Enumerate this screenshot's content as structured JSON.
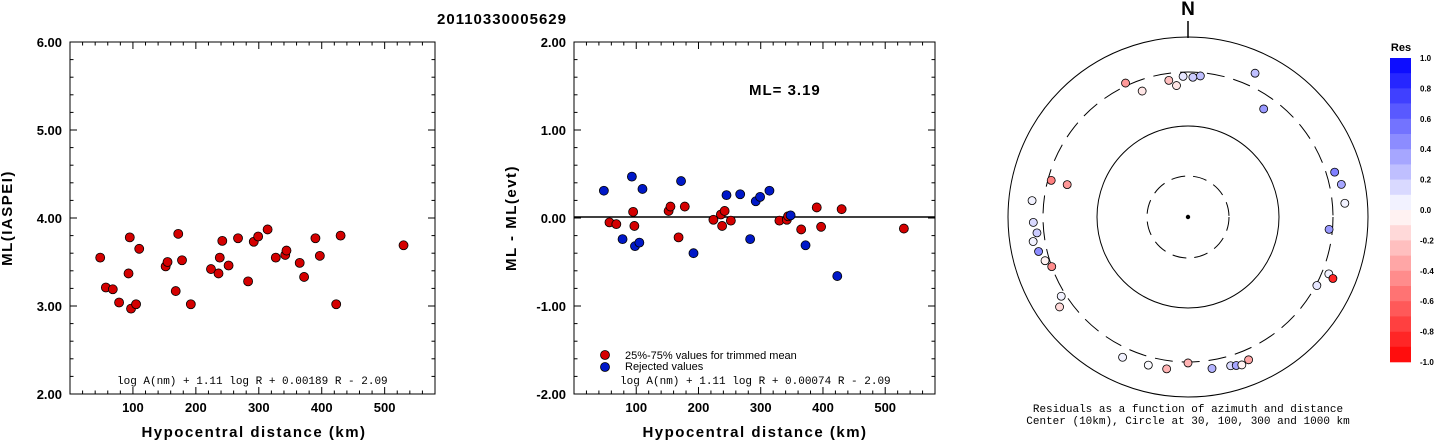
{
  "figure_title": "20110330005629",
  "chart_data": [
    {
      "type": "scatter",
      "xlabel": "Hypocentral distance (km)",
      "ylabel": "ML(IASPEI)",
      "xlim": [
        0,
        580
      ],
      "ylim": [
        2.0,
        6.0
      ],
      "xticks": [
        "100",
        "200",
        "300",
        "400",
        "500"
      ],
      "yticks": [
        "2.00",
        "3.00",
        "4.00",
        "5.00",
        "6.00"
      ],
      "formula": "log A(nm) + 1.11 log R + 0.00189 R - 2.09",
      "point_color": "#d40000",
      "points": [
        [
          48,
          3.55
        ],
        [
          57,
          3.21
        ],
        [
          68,
          3.19
        ],
        [
          78,
          3.04
        ],
        [
          93,
          3.37
        ],
        [
          95,
          3.78
        ],
        [
          97,
          2.97
        ],
        [
          105,
          3.02
        ],
        [
          110,
          3.65
        ],
        [
          152,
          3.45
        ],
        [
          155,
          3.5
        ],
        [
          168,
          3.17
        ],
        [
          172,
          3.82
        ],
        [
          178,
          3.52
        ],
        [
          192,
          3.02
        ],
        [
          224,
          3.42
        ],
        [
          236,
          3.37
        ],
        [
          238,
          3.55
        ],
        [
          242,
          3.74
        ],
        [
          252,
          3.46
        ],
        [
          267,
          3.77
        ],
        [
          283,
          3.28
        ],
        [
          292,
          3.73
        ],
        [
          299,
          3.79
        ],
        [
          314,
          3.87
        ],
        [
          327,
          3.55
        ],
        [
          342,
          3.58
        ],
        [
          344,
          3.63
        ],
        [
          365,
          3.49
        ],
        [
          372,
          3.33
        ],
        [
          390,
          3.77
        ],
        [
          397,
          3.57
        ],
        [
          423,
          3.02
        ],
        [
          430,
          3.8
        ],
        [
          530,
          3.69
        ]
      ]
    },
    {
      "type": "scatter",
      "xlabel": "Hypocentral distance (km)",
      "ylabel": "ML - ML(evt)",
      "xlim": [
        0,
        580
      ],
      "ylim": [
        -2.0,
        2.0
      ],
      "xticks": [
        "100",
        "200",
        "300",
        "400",
        "500"
      ],
      "yticks": [
        "-2.00",
        "-1.00",
        "0.00",
        "1.00",
        "2.00"
      ],
      "annotation": "ML= 3.19",
      "formula": "log A(nm) + 1.11 log R + 0.00074 R - 2.09",
      "legend": [
        "25%-75% values for trimmed mean",
        "Rejected values"
      ],
      "series": [
        {
          "name": "25%-75% values for trimmed mean",
          "color": "#d40000",
          "points": [
            [
              57,
              -0.05
            ],
            [
              68,
              -0.07
            ],
            [
              95,
              0.07
            ],
            [
              97,
              -0.09
            ],
            [
              152,
              0.08
            ],
            [
              155,
              0.13
            ],
            [
              168,
              -0.22
            ],
            [
              178,
              0.13
            ],
            [
              224,
              -0.02
            ],
            [
              236,
              0.04
            ],
            [
              238,
              -0.09
            ],
            [
              242,
              0.08
            ],
            [
              252,
              -0.03
            ],
            [
              330,
              -0.03
            ],
            [
              342,
              -0.02
            ],
            [
              344,
              0.02
            ],
            [
              365,
              -0.13
            ],
            [
              390,
              0.12
            ],
            [
              397,
              -0.1
            ],
            [
              430,
              0.1
            ],
            [
              530,
              -0.12
            ]
          ]
        },
        {
          "name": "Rejected values",
          "color": "#0018c8",
          "points": [
            [
              48,
              0.31
            ],
            [
              78,
              -0.24
            ],
            [
              93,
              0.47
            ],
            [
              98,
              -0.32
            ],
            [
              105,
              -0.28
            ],
            [
              110,
              0.33
            ],
            [
              172,
              0.42
            ],
            [
              192,
              -0.4
            ],
            [
              245,
              0.26
            ],
            [
              267,
              0.27
            ],
            [
              283,
              -0.24
            ],
            [
              292,
              0.19
            ],
            [
              299,
              0.24
            ],
            [
              314,
              0.31
            ],
            [
              348,
              0.03
            ],
            [
              372,
              -0.31
            ],
            [
              423,
              -0.66
            ]
          ]
        }
      ]
    },
    {
      "type": "polar-scatter",
      "north_label": "N",
      "caption_line1": "Residuals as a function of azimuth and distance",
      "caption_line2": "Center (10km), Circle at 30, 100, 300 and 1000 km",
      "colorbar_title": "Res",
      "colorbar_ticks": [
        "1.0",
        "0.8",
        "0.6",
        "0.4",
        "0.2",
        "0.0",
        "-0.2",
        "-0.4",
        "-0.6",
        "-0.8",
        "-1.0"
      ],
      "points": [
        [
          335,
          330,
          -0.4
        ],
        [
          25,
          480,
          0.25
        ],
        [
          5,
          280,
          0.25
        ],
        [
          2,
          270,
          0.2
        ],
        [
          358,
          275,
          0.1
        ],
        [
          352,
          260,
          -0.25
        ],
        [
          355,
          230,
          -0.1
        ],
        [
          340,
          240,
          -0.1
        ],
        [
          35,
          230,
          0.4
        ],
        [
          285,
          200,
          -0.4
        ],
        [
          73,
          400,
          0.5
        ],
        [
          78,
          450,
          0.35
        ],
        [
          285,
          280,
          -0.5
        ],
        [
          276,
          450,
          0.05
        ],
        [
          268,
          420,
          0.15
        ],
        [
          264,
          380,
          0.2
        ],
        [
          261,
          450,
          0.05
        ],
        [
          257,
          400,
          0.45
        ],
        [
          253,
          350,
          -0.05
        ],
        [
          250,
          300,
          -0.45
        ],
        [
          238,
          350,
          0.05
        ],
        [
          235,
          450,
          -0.15
        ],
        [
          85,
          460,
          0.05
        ],
        [
          95,
          280,
          0.4
        ],
        [
          118,
          310,
          0.1
        ],
        [
          112,
          380,
          0.05
        ],
        [
          113,
          460,
          -0.85
        ],
        [
          205,
          420,
          0.05
        ],
        [
          195,
          400,
          0.02
        ],
        [
          188,
          400,
          -0.3
        ],
        [
          180,
          310,
          -0.3
        ],
        [
          171,
          400,
          0.3
        ],
        [
          164,
          420,
          0.15
        ],
        [
          162,
          440,
          0.35
        ],
        [
          157,
          425,
          -0.35
        ],
        [
          160,
          460,
          -0.05
        ]
      ]
    }
  ]
}
